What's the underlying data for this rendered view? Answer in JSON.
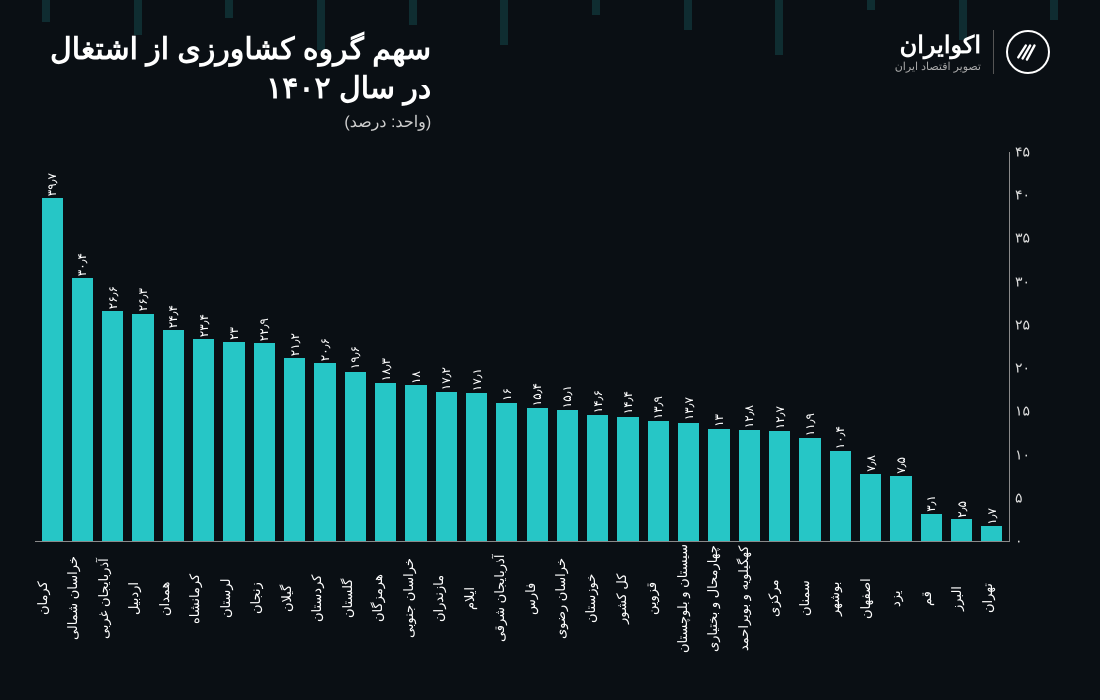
{
  "header": {
    "title_line1": "سهم گروه کشاورزی از اشتغال",
    "title_line2": "در سال ۱۴۰۲",
    "unit": "(واحد: درصد)",
    "logo_main": "اکوایران",
    "logo_sub": "تصویر اقتصاد ایران"
  },
  "chart": {
    "type": "bar",
    "background_color": "#0a0f14",
    "bar_color": "#26c6c6",
    "text_color": "#ffffff",
    "axis_color": "#8a8a8a",
    "ylim": [
      0,
      45
    ],
    "ytick_step": 5,
    "yticks": [
      {
        "v": 0,
        "label": "۰"
      },
      {
        "v": 5,
        "label": "۵"
      },
      {
        "v": 10,
        "label": "۱۰"
      },
      {
        "v": 15,
        "label": "۱۵"
      },
      {
        "v": 20,
        "label": "۲۰"
      },
      {
        "v": 25,
        "label": "۲۵"
      },
      {
        "v": 30,
        "label": "۳۰"
      },
      {
        "v": 35,
        "label": "۳۵"
      },
      {
        "v": 40,
        "label": "۴۰"
      },
      {
        "v": 45,
        "label": "۴۵"
      }
    ],
    "value_fontsize": 12,
    "label_fontsize": 13,
    "bars": [
      {
        "label": "کرمان",
        "value": 39.7,
        "value_label": "۳۹٫۷"
      },
      {
        "label": "خراسان شمالی",
        "value": 30.4,
        "value_label": "۳۰٫۴"
      },
      {
        "label": "آذربایجان غربی",
        "value": 26.6,
        "value_label": "۲۶٫۶"
      },
      {
        "label": "اردبیل",
        "value": 26.3,
        "value_label": "۲۶٫۳"
      },
      {
        "label": "همدان",
        "value": 24.4,
        "value_label": "۲۴٫۴"
      },
      {
        "label": "کرمانشاه",
        "value": 23.4,
        "value_label": "۲۳٫۴"
      },
      {
        "label": "لرستان",
        "value": 23.0,
        "value_label": "۲۳"
      },
      {
        "label": "زنجان",
        "value": 22.9,
        "value_label": "۲۲٫۹"
      },
      {
        "label": "گیلان",
        "value": 21.2,
        "value_label": "۲۱٫۲"
      },
      {
        "label": "کردستان",
        "value": 20.6,
        "value_label": "۲۰٫۶"
      },
      {
        "label": "گلستان",
        "value": 19.6,
        "value_label": "۱۹٫۶"
      },
      {
        "label": "هرمزگان",
        "value": 18.3,
        "value_label": "۱۸٫۳"
      },
      {
        "label": "خراسان جنوبی",
        "value": 18.0,
        "value_label": "۱۸"
      },
      {
        "label": "مازندران",
        "value": 17.2,
        "value_label": "۱۷٫۲"
      },
      {
        "label": "ایلام",
        "value": 17.1,
        "value_label": "۱۷٫۱"
      },
      {
        "label": "آذربایجان شرقی",
        "value": 16.0,
        "value_label": "۱۶"
      },
      {
        "label": "فارس",
        "value": 15.4,
        "value_label": "۱۵٫۴"
      },
      {
        "label": "خراسان رضوی",
        "value": 15.1,
        "value_label": "۱۵٫۱"
      },
      {
        "label": "خوزستان",
        "value": 14.6,
        "value_label": "۱۴٫۶"
      },
      {
        "label": "کل کشور",
        "value": 14.4,
        "value_label": "۱۴٫۴"
      },
      {
        "label": "قزوین",
        "value": 13.9,
        "value_label": "۱۳٫۹"
      },
      {
        "label": "سیستان و بلوچستان",
        "value": 13.7,
        "value_label": "۱۳٫۷"
      },
      {
        "label": "چهارمحال و بختیاری",
        "value": 13.0,
        "value_label": "۱۳"
      },
      {
        "label": "کهگیلویه و بویراحمد",
        "value": 12.8,
        "value_label": "۱۲٫۸"
      },
      {
        "label": "مرکزی",
        "value": 12.7,
        "value_label": "۱۲٫۷"
      },
      {
        "label": "سمنان",
        "value": 11.9,
        "value_label": "۱۱٫۹"
      },
      {
        "label": "بوشهر",
        "value": 10.4,
        "value_label": "۱۰٫۴"
      },
      {
        "label": "اصفهان",
        "value": 7.8,
        "value_label": "۷٫۸"
      },
      {
        "label": "یزد",
        "value": 7.5,
        "value_label": "۷٫۵"
      },
      {
        "label": "قم",
        "value": 3.1,
        "value_label": "۳٫۱"
      },
      {
        "label": "البرز",
        "value": 2.5,
        "value_label": "۲٫۵"
      },
      {
        "label": "تهران",
        "value": 1.7,
        "value_label": "۱٫۷"
      }
    ]
  }
}
